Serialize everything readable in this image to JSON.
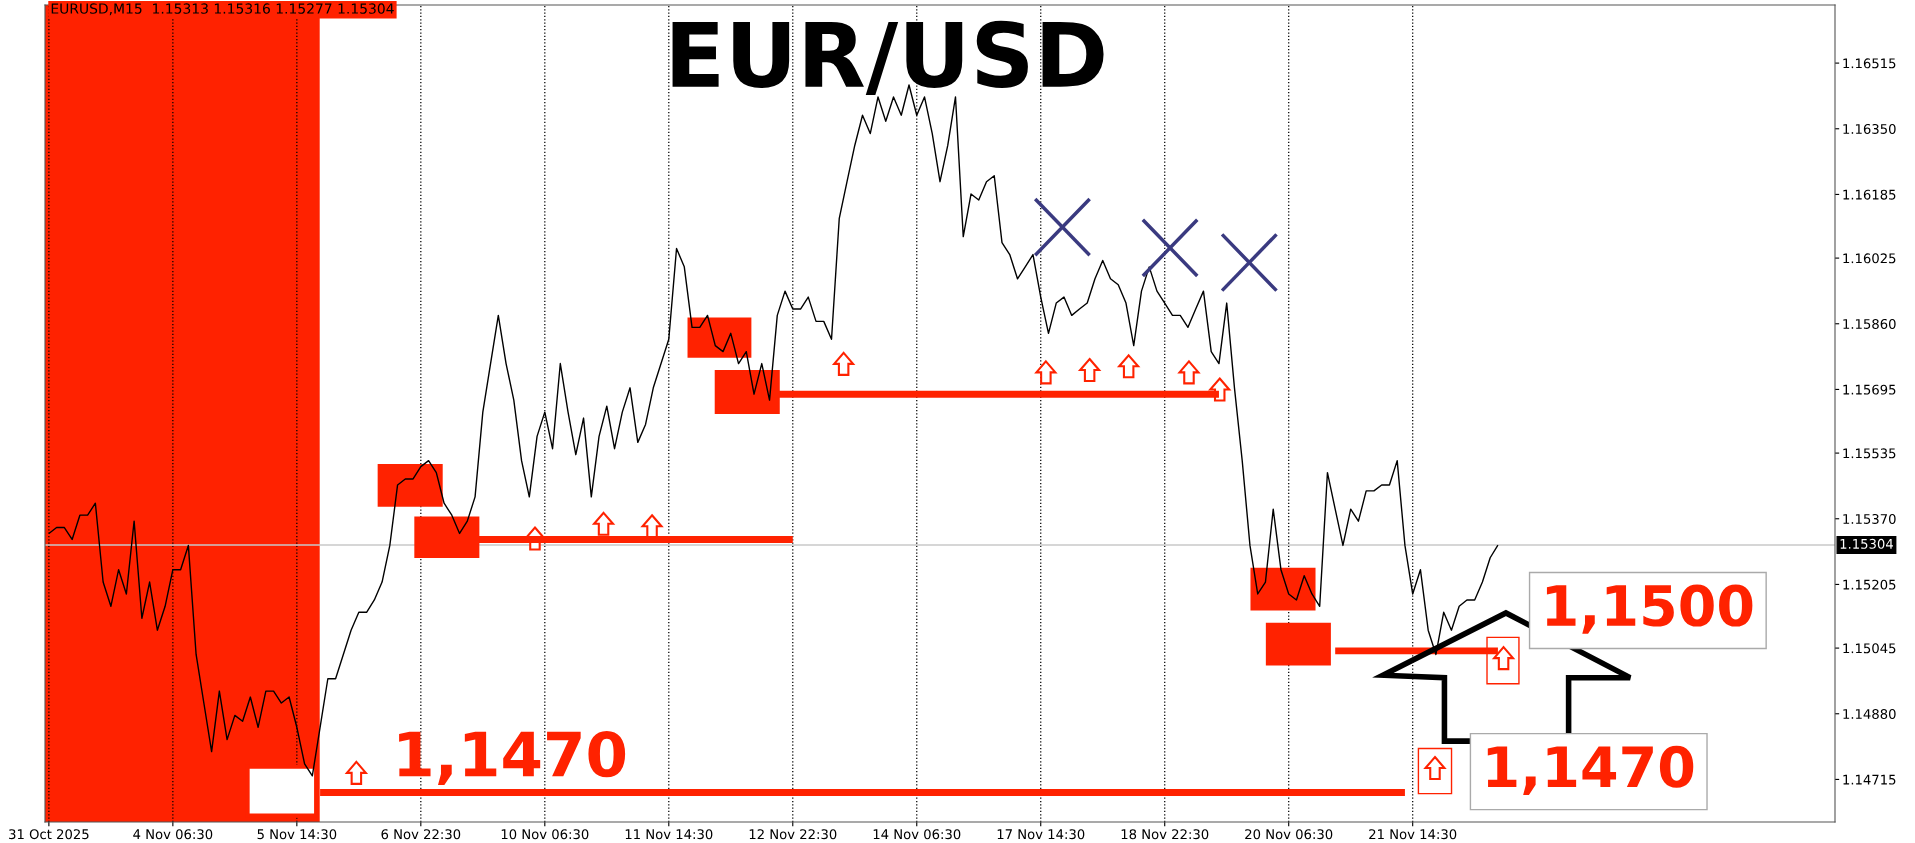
{
  "chart_data": {
    "type": "line",
    "title": "EUR/USD",
    "categories": [
      "31 Oct 2025",
      null,
      null,
      null,
      null,
      null,
      null,
      null,
      null,
      null,
      null,
      null,
      null,
      null,
      null,
      null,
      "4 Nov 06:30",
      null,
      null,
      null,
      null,
      null,
      null,
      null,
      null,
      null,
      null,
      null,
      null,
      null,
      null,
      null,
      "5 Nov 14:30",
      null,
      null,
      null,
      null,
      null,
      null,
      null,
      null,
      null,
      null,
      null,
      null,
      null,
      null,
      null,
      "6 Nov 22:30",
      null,
      null,
      null,
      null,
      null,
      null,
      null,
      null,
      null,
      null,
      null,
      null,
      null,
      null,
      null,
      "10 Nov 06:30",
      null,
      null,
      null,
      null,
      null,
      null,
      null,
      null,
      null,
      null,
      null,
      null,
      null,
      null,
      null,
      "11 Nov 14:30",
      null,
      null,
      null,
      null,
      null,
      null,
      null,
      null,
      null,
      null,
      null,
      null,
      null,
      null,
      null,
      "12 Nov 22:30",
      null,
      null,
      null,
      null,
      null,
      null,
      null,
      null,
      null,
      null,
      null,
      null,
      null,
      null,
      null,
      "14 Nov 06:30",
      null,
      null,
      null,
      null,
      null,
      null,
      null,
      null,
      null,
      null,
      null,
      null,
      null,
      null,
      null,
      "17 Nov 14:30",
      null,
      null,
      null,
      null,
      null,
      null,
      null,
      null,
      null,
      null,
      null,
      null,
      null,
      null,
      null,
      "18 Nov 22:30",
      null,
      null,
      null,
      null,
      null,
      null,
      null,
      null,
      null,
      null,
      null,
      null,
      null,
      null,
      null,
      "20 Nov 06:30",
      null,
      null,
      null,
      null,
      null,
      null,
      null,
      null,
      null,
      null,
      null,
      null,
      null,
      null,
      null,
      "21 Nov 14:30",
      null,
      null,
      null,
      null,
      null,
      null,
      null,
      null,
      null,
      null,
      null,
      null,
      null,
      null,
      null,
      null,
      null,
      null,
      null,
      null,
      null,
      null,
      null,
      null,
      null,
      null,
      null,
      null,
      null,
      null,
      null,
      null,
      null,
      null,
      null,
      null,
      null,
      null,
      null,
      null,
      null,
      null,
      null,
      null,
      null,
      null,
      null,
      null,
      null,
      null,
      null,
      null,
      null,
      null
    ],
    "series": [
      {
        "color": "#000000",
        "values": [
          1.15333,
          1.15348,
          1.15348,
          1.15318,
          1.15379,
          1.15379,
          1.15409,
          1.15211,
          1.1515,
          1.15242,
          1.15181,
          1.15364,
          1.1512,
          1.15211,
          1.1509,
          1.1515,
          1.15242,
          1.15242,
          1.15303,
          1.15029,
          1.14907,
          1.14785,
          1.14937,
          1.14815,
          1.14876,
          1.14861,
          1.14922,
          1.14846,
          1.14937,
          1.14937,
          1.14907,
          1.14922,
          1.14846,
          1.14754,
          1.14724,
          1.14846,
          1.14968,
          1.14968,
          1.15029,
          1.1509,
          1.15135,
          1.15135,
          1.15166,
          1.15211,
          1.15303,
          1.15455,
          1.1547,
          1.1547,
          1.15501,
          1.15516,
          1.15486,
          1.15409,
          1.15379,
          1.15333,
          1.15364,
          1.15425,
          1.15638,
          1.1576,
          1.15881,
          1.1576,
          1.15668,
          1.15516,
          1.15425,
          1.15577,
          1.15638,
          1.15546,
          1.1576,
          1.15638,
          1.15531,
          1.15623,
          1.15425,
          1.15577,
          1.15653,
          1.15546,
          1.15638,
          1.15699,
          1.15562,
          1.15607,
          1.15699,
          1.1576,
          1.15821,
          1.16049,
          1.16003,
          1.15851,
          1.15851,
          1.15881,
          1.15805,
          1.1579,
          1.15836,
          1.1576,
          1.1579,
          1.15683,
          1.1576,
          1.15668,
          1.15881,
          1.15942,
          1.15897,
          1.15897,
          1.15927,
          1.15866,
          1.15866,
          1.15821,
          1.16125,
          1.16217,
          1.16308,
          1.16384,
          1.16338,
          1.1643,
          1.16369,
          1.1643,
          1.16384,
          1.1646,
          1.16384,
          1.1643,
          1.16338,
          1.16217,
          1.16308,
          1.1643,
          1.16079,
          1.16186,
          1.16171,
          1.16217,
          1.16232,
          1.16064,
          1.16034,
          1.15973,
          1.16003,
          1.16034,
          1.15927,
          1.15836,
          1.15912,
          1.15927,
          1.15881,
          1.15897,
          1.15912,
          1.15973,
          1.16019,
          1.15973,
          1.15958,
          1.15912,
          1.15805,
          1.15942,
          1.16003,
          1.15942,
          1.15912,
          1.15881,
          1.15881,
          1.15851,
          1.15897,
          1.15942,
          1.1579,
          1.1576,
          1.15912,
          1.15699,
          1.15516,
          1.15303,
          1.15181,
          1.15211,
          1.15394,
          1.15242,
          1.15181,
          1.15166,
          1.15227,
          1.15181,
          1.1515,
          1.15486,
          1.15394,
          1.15303,
          1.15394,
          1.15364,
          1.1544,
          1.1544,
          1.15455,
          1.15455,
          1.15516,
          1.15303,
          1.15181,
          1.15242,
          1.1509,
          1.15029,
          1.15135,
          1.1509,
          1.1515,
          1.15166,
          1.15166,
          1.15211,
          1.15272,
          1.15304,
          null,
          null,
          null,
          null,
          null,
          null,
          null,
          null,
          null,
          null,
          null,
          null,
          null,
          null,
          null,
          null,
          null,
          null,
          null,
          null,
          null,
          null,
          null,
          null,
          null,
          null,
          null,
          null,
          null,
          null,
          null,
          null,
          null,
          null,
          null,
          null,
          null,
          null,
          null,
          null,
          null,
          null,
          null
        ]
      },
      {
        "color": "#ff2200",
        "values": [
          null,
          null,
          null,
          null,
          null,
          null,
          null,
          null,
          null,
          null,
          null,
          null,
          null,
          null,
          null,
          null,
          null,
          null,
          null,
          null,
          null,
          null,
          null,
          null,
          null,
          null,
          null,
          null,
          null,
          null,
          null,
          null,
          null,
          null,
          null,
          1.14682,
          1.14682,
          1.14682,
          1.14682,
          1.14682,
          1.14682,
          1.14682,
          1.14682,
          1.14682,
          1.14682,
          1.14682,
          1.14682,
          1.14682,
          1.14682,
          1.14682,
          1.14682,
          1.14682,
          1.14682,
          1.14682,
          1.14682,
          1.14682,
          1.14682,
          1.14682,
          1.14682,
          1.14682,
          1.14682,
          1.14682,
          1.14682,
          1.14682,
          1.14682,
          1.14682,
          1.14682,
          1.14682,
          1.14682,
          1.14682,
          1.14682,
          1.14682,
          1.14682,
          1.14682,
          1.14682,
          1.14682,
          1.14682,
          1.14682,
          1.14682,
          1.14682,
          1.14682,
          1.14682,
          1.14682,
          1.14682,
          1.14682,
          1.14682,
          1.14682,
          1.14682,
          1.14682,
          1.14682,
          1.14682,
          1.14682,
          1.14682,
          1.14682,
          1.14682,
          1.14682,
          1.14682,
          1.14682,
          1.14682,
          1.14682,
          1.14682,
          1.14682,
          1.14682,
          1.14682,
          1.14682,
          1.14682,
          1.14682,
          1.14682,
          1.14682,
          1.14682,
          1.14682,
          1.14682,
          1.14682,
          1.14682,
          1.14682,
          1.14682,
          1.14682,
          1.14682,
          1.14682,
          1.14682,
          1.14682,
          1.14682,
          1.14682,
          1.14682,
          1.14682,
          1.14682,
          1.14682,
          1.14682,
          1.14682,
          1.14682,
          1.14682,
          1.14682,
          1.14682,
          1.14682,
          1.14682,
          1.14682,
          1.14682,
          1.14682,
          1.14682,
          1.14682,
          1.14682,
          1.14682,
          1.14682,
          1.14682,
          1.14682,
          1.14682,
          1.14682,
          1.14682,
          1.14682,
          1.14682,
          1.14682,
          1.14682,
          1.14682,
          1.14682,
          1.14682,
          1.14682,
          1.14682,
          1.14682,
          1.14682,
          1.14682,
          1.14682,
          1.14682,
          1.14682,
          1.14682,
          1.14682,
          1.14682,
          1.14682,
          1.14682,
          1.14682,
          1.14682,
          1.14682,
          1.14682,
          1.14682,
          1.14682,
          1.14682,
          1.14682,
          null,
          null,
          null,
          null,
          null,
          null,
          null,
          null,
          null,
          null,
          null,
          null,
          null,
          null,
          null,
          null,
          null,
          null,
          null,
          null,
          null,
          null,
          null,
          null,
          null,
          null,
          null,
          null,
          null,
          null,
          null,
          null,
          null,
          null,
          null,
          null,
          null,
          null,
          null,
          null,
          null,
          null,
          null,
          null,
          null,
          null,
          null,
          null,
          null,
          null,
          null,
          null,
          null,
          null,
          null
        ]
      },
      {
        "color": "#ff2200",
        "values": [
          null,
          null,
          null,
          null,
          null,
          null,
          null,
          null,
          null,
          null,
          null,
          null,
          null,
          null,
          null,
          null,
          null,
          null,
          null,
          null,
          null,
          null,
          null,
          null,
          null,
          null,
          null,
          null,
          null,
          null,
          null,
          null,
          null,
          null,
          null,
          null,
          null,
          null,
          null,
          null,
          null,
          null,
          null,
          null,
          null,
          null,
          null,
          null,
          null,
          null,
          null,
          null,
          null,
          1.15318,
          1.15318,
          1.15318,
          1.15318,
          1.15318,
          1.15318,
          1.15318,
          1.15318,
          1.15318,
          1.15318,
          1.15318,
          1.15318,
          1.15318,
          1.15318,
          1.15318,
          1.15318,
          1.15318,
          1.15318,
          1.15318,
          1.15318,
          1.15318,
          1.15318,
          1.15318,
          1.15318,
          1.15318,
          1.15318,
          1.15318,
          1.15318,
          1.15318,
          1.15318,
          1.15318,
          1.15318,
          1.15318,
          1.15318,
          1.15318,
          1.15318,
          1.15318,
          1.15318,
          1.15318,
          1.15318,
          1.15318,
          1.15318,
          1.15318,
          1.15318,
          null,
          null,
          null,
          null,
          null,
          null,
          null,
          null,
          null,
          null,
          null,
          null,
          null,
          null,
          null,
          null,
          null,
          null,
          null,
          null,
          null,
          null,
          null,
          null,
          null,
          null,
          null,
          null,
          null,
          null,
          null,
          null,
          null,
          null,
          null,
          null,
          null,
          null,
          null,
          null,
          null,
          null,
          null,
          null,
          null,
          null,
          null,
          null,
          null,
          null,
          null,
          null,
          null,
          null,
          null,
          null,
          null,
          null,
          null,
          null,
          null,
          null,
          null,
          null,
          null,
          null,
          null,
          null,
          null,
          null,
          null,
          null,
          null,
          null,
          null,
          null,
          null,
          null,
          null,
          null,
          null,
          null,
          null,
          null,
          null,
          null,
          null,
          null,
          null,
          null,
          null,
          null,
          null,
          null,
          null,
          null,
          null,
          null,
          null,
          null,
          null,
          null,
          null,
          null,
          null,
          null,
          null,
          null,
          null,
          null,
          null,
          null,
          null,
          null,
          null,
          null,
          null,
          null,
          null,
          null,
          null,
          null,
          null,
          null,
          null,
          null,
          null,
          null,
          null,
          null,
          null,
          null,
          null,
          null
        ]
      },
      {
        "color": "#ff2200",
        "values": [
          null,
          null,
          null,
          null,
          null,
          null,
          null,
          null,
          null,
          null,
          null,
          null,
          null,
          null,
          null,
          null,
          null,
          null,
          null,
          null,
          null,
          null,
          null,
          null,
          null,
          null,
          null,
          null,
          null,
          null,
          null,
          null,
          null,
          null,
          null,
          null,
          null,
          null,
          null,
          null,
          null,
          null,
          null,
          null,
          null,
          null,
          null,
          null,
          null,
          null,
          null,
          null,
          null,
          null,
          null,
          null,
          null,
          null,
          null,
          null,
          null,
          null,
          null,
          null,
          null,
          null,
          null,
          null,
          null,
          null,
          null,
          null,
          null,
          null,
          null,
          null,
          null,
          null,
          null,
          null,
          null,
          null,
          null,
          null,
          null,
          null,
          null,
          null,
          null,
          null,
          null,
          null,
          1.15683,
          1.15683,
          1.15683,
          1.15683,
          1.15683,
          1.15683,
          1.15683,
          1.15683,
          1.15683,
          1.15683,
          1.15683,
          1.15683,
          1.15683,
          1.15683,
          1.15683,
          1.15683,
          1.15683,
          1.15683,
          1.15683,
          1.15683,
          1.15683,
          1.15683,
          1.15683,
          1.15683,
          1.15683,
          1.15683,
          1.15683,
          1.15683,
          1.15683,
          1.15683,
          1.15683,
          1.15683,
          1.15683,
          1.15683,
          1.15683,
          1.15683,
          1.15683,
          1.15683,
          1.15683,
          1.15683,
          1.15683,
          1.15683,
          1.15683,
          1.15683,
          1.15683,
          1.15683,
          1.15683,
          1.15683,
          1.15683,
          1.15683,
          1.15683,
          1.15683,
          1.15683,
          1.15683,
          1.15683,
          1.15683,
          1.15683,
          1.15683,
          1.15683,
          1.15683,
          null,
          null,
          null,
          null,
          null,
          null,
          null,
          null,
          null,
          null,
          null,
          null,
          null,
          null,
          null,
          null,
          null,
          null,
          null,
          null,
          null,
          null,
          null,
          null,
          null,
          null,
          null,
          null,
          null,
          null,
          null,
          null,
          null,
          null,
          null,
          null,
          null,
          null,
          null,
          null,
          null,
          null,
          null,
          null,
          null,
          null,
          null,
          null,
          null,
          null,
          null,
          null,
          null,
          null,
          null,
          null,
          null,
          null,
          null,
          null,
          null,
          null,
          null,
          null,
          null,
          null,
          null,
          null,
          null,
          null,
          null,
          null,
          null,
          null,
          null,
          null,
          null,
          null,
          null
        ]
      },
      {
        "color": "#ff2200",
        "values": [
          null,
          null,
          null,
          null,
          null,
          null,
          null,
          null,
          null,
          null,
          null,
          null,
          null,
          null,
          null,
          null,
          null,
          null,
          null,
          null,
          null,
          null,
          null,
          null,
          null,
          null,
          null,
          null,
          null,
          null,
          null,
          null,
          null,
          null,
          null,
          null,
          null,
          null,
          null,
          null,
          null,
          null,
          null,
          null,
          null,
          null,
          null,
          null,
          null,
          null,
          null,
          null,
          null,
          null,
          null,
          null,
          null,
          null,
          null,
          null,
          null,
          null,
          null,
          null,
          null,
          null,
          null,
          null,
          null,
          null,
          null,
          null,
          null,
          null,
          null,
          null,
          null,
          null,
          null,
          null,
          null,
          null,
          null,
          null,
          null,
          null,
          null,
          null,
          null,
          null,
          null,
          null,
          null,
          null,
          null,
          null,
          null,
          null,
          null,
          null,
          null,
          null,
          null,
          null,
          null,
          null,
          null,
          null,
          null,
          null,
          null,
          null,
          null,
          null,
          null,
          null,
          null,
          null,
          null,
          null,
          null,
          null,
          null,
          null,
          null,
          null,
          null,
          null,
          null,
          null,
          null,
          null,
          null,
          null,
          null,
          null,
          null,
          null,
          null,
          null,
          null,
          null,
          null,
          null,
          null,
          null,
          null,
          null,
          null,
          null,
          null,
          null,
          null,
          null,
          null,
          null,
          null,
          null,
          null,
          null,
          null,
          null,
          null,
          null,
          null,
          null,
          1.15038,
          1.15038,
          1.15038,
          1.15038,
          1.15038,
          1.15038,
          1.15038,
          1.15038,
          1.15038,
          1.15038,
          1.15038,
          1.15038,
          1.15038,
          1.15038,
          1.15038,
          1.15038,
          1.15038,
          1.15038,
          1.15038,
          1.15038,
          1.15038,
          1.15038,
          null,
          null,
          null,
          null,
          null,
          null,
          null,
          null,
          null,
          null,
          null,
          null,
          null,
          null,
          null,
          null,
          null,
          null,
          null,
          null,
          null,
          null,
          null,
          null,
          null,
          null,
          null,
          null,
          null,
          null,
          null,
          null,
          null,
          null,
          null,
          null,
          null,
          null,
          null,
          null,
          null,
          null,
          null
        ]
      }
    ],
    "ylim": [
      1.14608,
      1.16661
    ],
    "yticks": [
      1.16515,
      {
        "value": 1.1635,
        "label": "1.16350"
      },
      1.16185,
      1.16025,
      {
        "value": 1.1586,
        "label": "1.15860"
      },
      1.15695,
      1.15535,
      {
        "value": 1.1537,
        "label": "1.15370"
      },
      1.15205,
      1.15045,
      {
        "value": 1.1488,
        "label": "1.14880"
      },
      1.14715
    ],
    "grid": "x",
    "ref_lines": [
      {
        "axis": "y",
        "value": 1.15304,
        "label": "1.15304",
        "color": "#c8c8c8"
      }
    ],
    "annotations": [
      "EURUSD,M15  1.15313 1.15316 1.15277 1.15304",
      "1,1470",
      "1,1500",
      "1,1470"
    ]
  }
}
